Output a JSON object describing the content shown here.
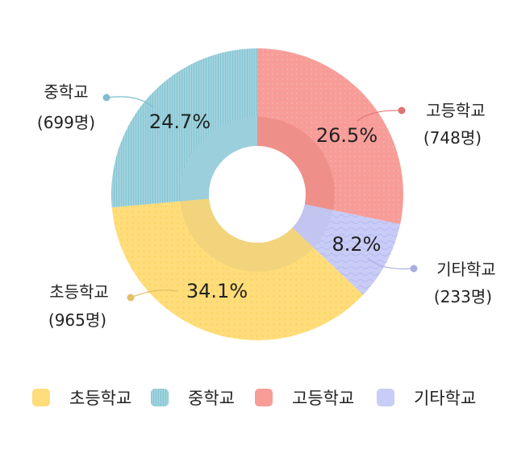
{
  "chart_data": {
    "type": "pie",
    "subtype": "donut",
    "title": "",
    "start_angle_deg": 0,
    "direction": "clockwise",
    "categories": [
      "고등학교",
      "기타학교",
      "초등학교",
      "중학교"
    ],
    "values": [
      748,
      233,
      965,
      699
    ],
    "percent_labels": [
      "26.5%",
      "8.2%",
      "34.1%",
      "24.7%"
    ],
    "count_labels": [
      "(748명)",
      "(233명)",
      "(965명)",
      "(699명)"
    ],
    "colors": {
      "고등학교": "#f89c98",
      "기타학교": "#c8ccf6",
      "초등학교": "#fedd7a",
      "중학교": "#98d0dc"
    },
    "inner_ring_colors": {
      "고등학교": "#ee8f8a",
      "기타학교": "#c2c5ef",
      "초등학교": "#f1d47c",
      "중학교": "#9acfdb"
    },
    "leader_dot_colors": {
      "고등학교": "#dd7471",
      "기타학교": "#a9addf",
      "초등학교": "#e3c068",
      "중학교": "#7ebfcd"
    },
    "patterns": {
      "고등학교": "dots-grid",
      "기타학교": "waves",
      "초등학교": "dots",
      "중학교": "vertical-lines"
    },
    "legend": {
      "position": "bottom",
      "order": [
        "초등학교",
        "중학교",
        "고등학교",
        "기타학교"
      ]
    }
  },
  "callouts": {
    "high": {
      "name": "고등학교",
      "count": "(748명)",
      "pct": "26.5%"
    },
    "other": {
      "name": "기타학교",
      "count": "(233명)",
      "pct": "8.2%"
    },
    "elem": {
      "name": "초등학교",
      "count": "(965명)",
      "pct": "34.1%"
    },
    "middle": {
      "name": "중학교",
      "count": "(699명)",
      "pct": "24.7%"
    }
  },
  "legend": [
    {
      "label": "초등학교",
      "color": "#fedd7a"
    },
    {
      "label": "중학교",
      "color": "#98d0dc"
    },
    {
      "label": "고등학교",
      "color": "#f89c98"
    },
    {
      "label": "기타학교",
      "color": "#c8ccf6"
    }
  ]
}
